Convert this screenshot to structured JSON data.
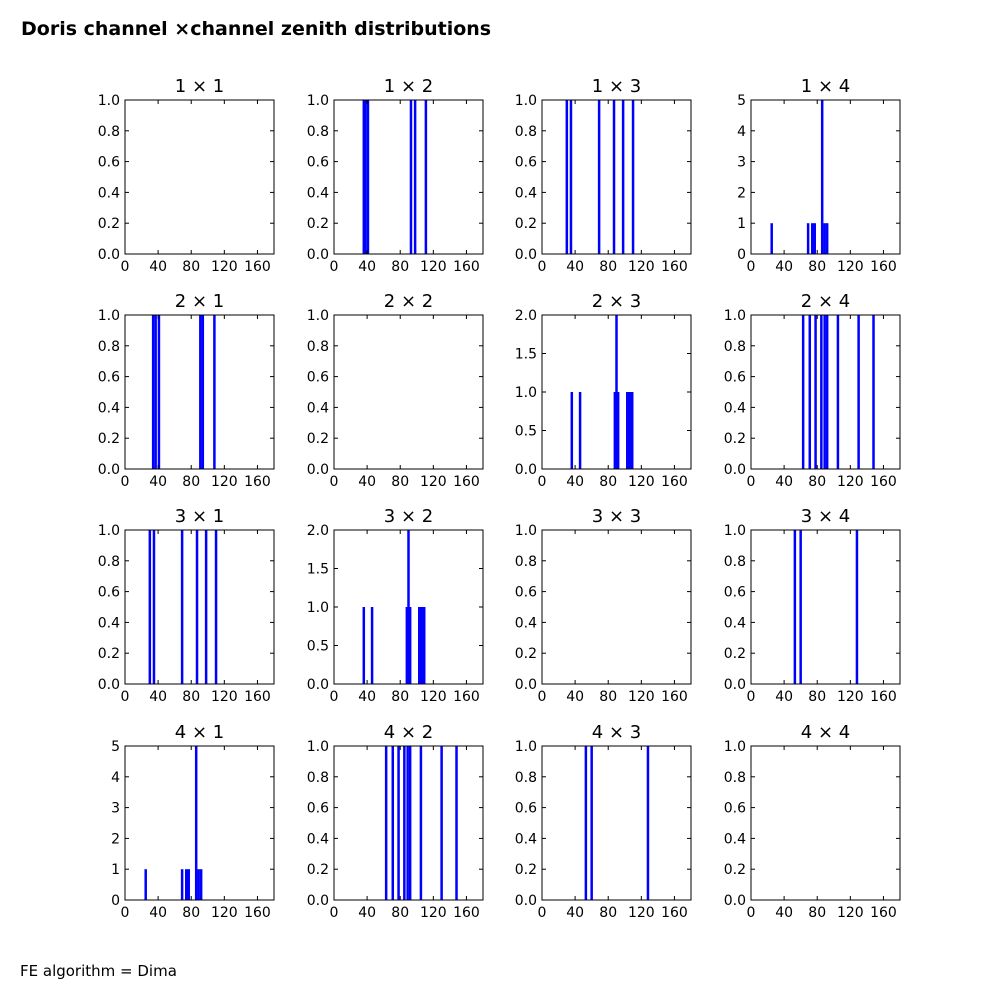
{
  "figure": {
    "title": "Doris channel ×channel zenith distributions",
    "footer": "FE algorithm = Dima"
  },
  "style": {
    "bar_color": "#0000ff"
  },
  "chart_data": [
    {
      "type": "bar",
      "title": "1 × 1",
      "xlim": [
        0,
        180
      ],
      "ylim": [
        0,
        1.0
      ],
      "xticks": [
        "0",
        "40",
        "80",
        "120",
        "160"
      ],
      "yticks": [
        "0.0",
        "0.2",
        "0.4",
        "0.6",
        "0.8",
        "1.0"
      ],
      "bars": []
    },
    {
      "type": "bar",
      "title": "1 × 2",
      "xlim": [
        0,
        180
      ],
      "ylim": [
        0,
        1.0
      ],
      "xticks": [
        "0",
        "40",
        "80",
        "120",
        "160"
      ],
      "yticks": [
        "0.0",
        "0.2",
        "0.4",
        "0.6",
        "0.8",
        "1.0"
      ],
      "bars": [
        [
          36,
          1
        ],
        [
          38,
          1
        ],
        [
          41,
          1
        ],
        [
          93,
          1
        ],
        [
          98,
          1
        ],
        [
          111,
          1
        ]
      ]
    },
    {
      "type": "bar",
      "title": "1 × 3",
      "xlim": [
        0,
        180
      ],
      "ylim": [
        0,
        1.0
      ],
      "xticks": [
        "0",
        "40",
        "80",
        "120",
        "160"
      ],
      "yticks": [
        "0.0",
        "0.2",
        "0.4",
        "0.6",
        "0.8",
        "1.0"
      ],
      "bars": [
        [
          30,
          1
        ],
        [
          35,
          1
        ],
        [
          69,
          1
        ],
        [
          87,
          1
        ],
        [
          98,
          1
        ],
        [
          110,
          1
        ]
      ]
    },
    {
      "type": "bar",
      "title": "1 × 4",
      "xlim": [
        0,
        180
      ],
      "ylim": [
        0,
        5
      ],
      "xticks": [
        "0",
        "40",
        "80",
        "120",
        "160"
      ],
      "yticks": [
        "0",
        "1",
        "2",
        "3",
        "4",
        "5"
      ],
      "bars": [
        [
          25,
          1
        ],
        [
          69,
          1
        ],
        [
          74,
          1
        ],
        [
          77,
          1
        ],
        [
          86,
          5
        ],
        [
          89,
          1
        ],
        [
          92,
          1
        ]
      ]
    },
    {
      "type": "bar",
      "title": "2 × 1",
      "xlim": [
        0,
        180
      ],
      "ylim": [
        0,
        1.0
      ],
      "xticks": [
        "0",
        "40",
        "80",
        "120",
        "160"
      ],
      "yticks": [
        "0.0",
        "0.2",
        "0.4",
        "0.6",
        "0.8",
        "1.0"
      ],
      "bars": [
        [
          34,
          1
        ],
        [
          37,
          1
        ],
        [
          41,
          1
        ],
        [
          91,
          1
        ],
        [
          94,
          1
        ],
        [
          108,
          1
        ]
      ]
    },
    {
      "type": "bar",
      "title": "2 × 2",
      "xlim": [
        0,
        180
      ],
      "ylim": [
        0,
        1.0
      ],
      "xticks": [
        "0",
        "40",
        "80",
        "120",
        "160"
      ],
      "yticks": [
        "0.0",
        "0.2",
        "0.4",
        "0.6",
        "0.8",
        "1.0"
      ],
      "bars": []
    },
    {
      "type": "bar",
      "title": "2 × 3",
      "xlim": [
        0,
        180
      ],
      "ylim": [
        0,
        2.0
      ],
      "xticks": [
        "0",
        "40",
        "80",
        "120",
        "160"
      ],
      "yticks": [
        "0.0",
        "0.5",
        "1.0",
        "1.5",
        "2.0"
      ],
      "bars": [
        [
          36,
          1
        ],
        [
          46,
          1
        ],
        [
          88,
          1
        ],
        [
          90,
          2
        ],
        [
          92,
          1
        ],
        [
          103,
          1
        ],
        [
          106,
          1
        ],
        [
          109,
          1
        ]
      ]
    },
    {
      "type": "bar",
      "title": "2 × 4",
      "xlim": [
        0,
        180
      ],
      "ylim": [
        0,
        1.0
      ],
      "xticks": [
        "0",
        "40",
        "80",
        "120",
        "160"
      ],
      "yticks": [
        "0.0",
        "0.2",
        "0.4",
        "0.6",
        "0.8",
        "1.0"
      ],
      "bars": [
        [
          63,
          1
        ],
        [
          71,
          1
        ],
        [
          78,
          1
        ],
        [
          85,
          1
        ],
        [
          89,
          1
        ],
        [
          92,
          1
        ],
        [
          105,
          1
        ],
        [
          130,
          1
        ],
        [
          148,
          1
        ]
      ]
    },
    {
      "type": "bar",
      "title": "3 × 1",
      "xlim": [
        0,
        180
      ],
      "ylim": [
        0,
        1.0
      ],
      "xticks": [
        "0",
        "40",
        "80",
        "120",
        "160"
      ],
      "yticks": [
        "0.0",
        "0.2",
        "0.4",
        "0.6",
        "0.8",
        "1.0"
      ],
      "bars": [
        [
          30,
          1
        ],
        [
          35,
          1
        ],
        [
          69,
          1
        ],
        [
          87,
          1
        ],
        [
          98,
          1
        ],
        [
          110,
          1
        ]
      ]
    },
    {
      "type": "bar",
      "title": "3 × 2",
      "xlim": [
        0,
        180
      ],
      "ylim": [
        0,
        2.0
      ],
      "xticks": [
        "0",
        "40",
        "80",
        "120",
        "160"
      ],
      "yticks": [
        "0.0",
        "0.5",
        "1.0",
        "1.5",
        "2.0"
      ],
      "bars": [
        [
          36,
          1
        ],
        [
          46,
          1
        ],
        [
          88,
          1
        ],
        [
          90,
          2
        ],
        [
          92,
          1
        ],
        [
          103,
          1
        ],
        [
          106,
          1
        ],
        [
          109,
          1
        ]
      ]
    },
    {
      "type": "bar",
      "title": "3 × 3",
      "xlim": [
        0,
        180
      ],
      "ylim": [
        0,
        1.0
      ],
      "xticks": [
        "0",
        "40",
        "80",
        "120",
        "160"
      ],
      "yticks": [
        "0.0",
        "0.2",
        "0.4",
        "0.6",
        "0.8",
        "1.0"
      ],
      "bars": []
    },
    {
      "type": "bar",
      "title": "3 × 4",
      "xlim": [
        0,
        180
      ],
      "ylim": [
        0,
        1.0
      ],
      "xticks": [
        "0",
        "40",
        "80",
        "120",
        "160"
      ],
      "yticks": [
        "0.0",
        "0.2",
        "0.4",
        "0.6",
        "0.8",
        "1.0"
      ],
      "bars": [
        [
          53,
          1
        ],
        [
          60,
          1
        ],
        [
          128,
          1
        ]
      ]
    },
    {
      "type": "bar",
      "title": "4 × 1",
      "xlim": [
        0,
        180
      ],
      "ylim": [
        0,
        5
      ],
      "xticks": [
        "0",
        "40",
        "80",
        "120",
        "160"
      ],
      "yticks": [
        "0",
        "1",
        "2",
        "3",
        "4",
        "5"
      ],
      "bars": [
        [
          25,
          1
        ],
        [
          69,
          1
        ],
        [
          74,
          1
        ],
        [
          77,
          1
        ],
        [
          86,
          5
        ],
        [
          89,
          1
        ],
        [
          92,
          1
        ]
      ]
    },
    {
      "type": "bar",
      "title": "4 × 2",
      "xlim": [
        0,
        180
      ],
      "ylim": [
        0,
        1.0
      ],
      "xticks": [
        "0",
        "40",
        "80",
        "120",
        "160"
      ],
      "yticks": [
        "0.0",
        "0.2",
        "0.4",
        "0.6",
        "0.8",
        "1.0"
      ],
      "bars": [
        [
          63,
          1
        ],
        [
          71,
          1
        ],
        [
          78,
          1
        ],
        [
          85,
          1
        ],
        [
          89,
          1
        ],
        [
          92,
          1
        ],
        [
          105,
          1
        ],
        [
          130,
          1
        ],
        [
          148,
          1
        ]
      ]
    },
    {
      "type": "bar",
      "title": "4 × 3",
      "xlim": [
        0,
        180
      ],
      "ylim": [
        0,
        1.0
      ],
      "xticks": [
        "0",
        "40",
        "80",
        "120",
        "160"
      ],
      "yticks": [
        "0.0",
        "0.2",
        "0.4",
        "0.6",
        "0.8",
        "1.0"
      ],
      "bars": [
        [
          53,
          1
        ],
        [
          60,
          1
        ],
        [
          128,
          1
        ]
      ]
    },
    {
      "type": "bar",
      "title": "4 × 4",
      "xlim": [
        0,
        180
      ],
      "ylim": [
        0,
        1.0
      ],
      "xticks": [
        "0",
        "40",
        "80",
        "120",
        "160"
      ],
      "yticks": [
        "0.0",
        "0.2",
        "0.4",
        "0.6",
        "0.8",
        "1.0"
      ],
      "bars": []
    }
  ]
}
